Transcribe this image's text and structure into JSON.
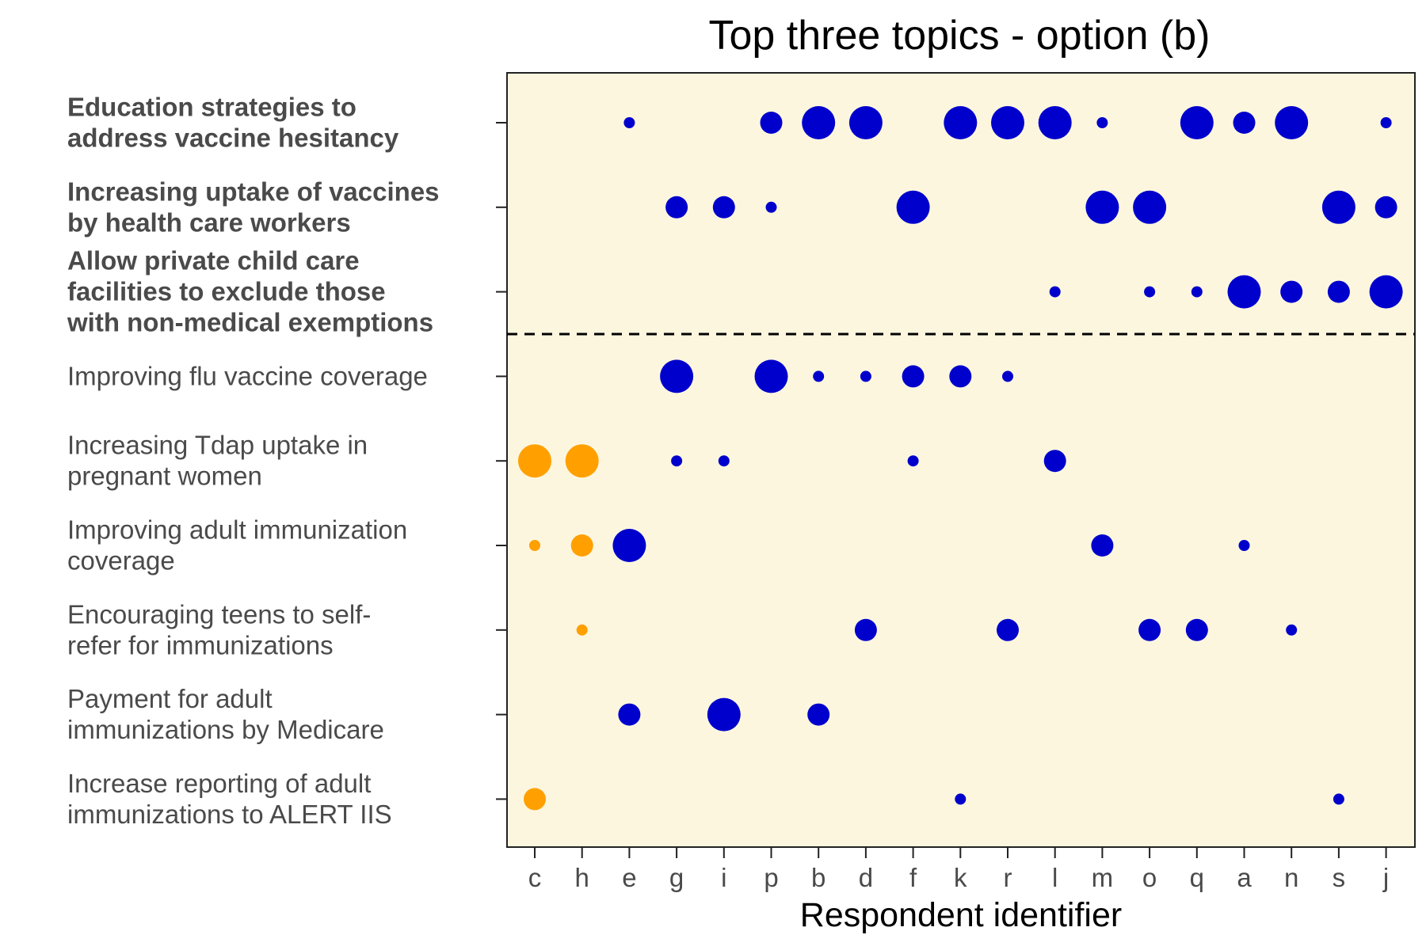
{
  "colors": {
    "panel": "#fdf6df",
    "primary": "#0000cc",
    "highlight": "#ffa000",
    "axis": "#222222"
  },
  "chart_data": {
    "type": "scatter",
    "title": "Top three topics - option (b)",
    "xlabel": "Respondent identifier",
    "ylabel": "",
    "categories": [
      "c",
      "h",
      "e",
      "g",
      "i",
      "p",
      "b",
      "d",
      "f",
      "k",
      "r",
      "l",
      "m",
      "o",
      "q",
      "a",
      "n",
      "s",
      "j"
    ],
    "topics": [
      {
        "label": [
          "Education strategies to",
          "address vaccine hesitancy"
        ],
        "bold": true
      },
      {
        "label": [
          "Increasing uptake of vaccines",
          "by health care workers"
        ],
        "bold": true
      },
      {
        "label": [
          "Allow private child care",
          "facilities to exclude those",
          "with non-medical exemptions"
        ],
        "bold": true
      },
      {
        "label": [
          "Improving flu vaccine coverage"
        ],
        "bold": false
      },
      {
        "label": [
          "Increasing Tdap uptake in",
          "pregnant women"
        ],
        "bold": false
      },
      {
        "label": [
          "Improving adult immunization",
          "coverage"
        ],
        "bold": false
      },
      {
        "label": [
          "Encouraging teens to self-",
          "refer for immunizations"
        ],
        "bold": false
      },
      {
        "label": [
          "Payment for adult",
          "immunizations by Medicare"
        ],
        "bold": false
      },
      {
        "label": [
          "Increase reporting of adult",
          "immunizations to ALERT IIS"
        ],
        "bold": false
      }
    ],
    "divider_after_topic": 2,
    "size_scale": [
      1,
      2,
      3
    ],
    "points": [
      {
        "topic": 0,
        "x": "e",
        "size": 1,
        "group": "primary"
      },
      {
        "topic": 0,
        "x": "p",
        "size": 2,
        "group": "primary"
      },
      {
        "topic": 0,
        "x": "b",
        "size": 3,
        "group": "primary"
      },
      {
        "topic": 0,
        "x": "d",
        "size": 3,
        "group": "primary"
      },
      {
        "topic": 0,
        "x": "k",
        "size": 3,
        "group": "primary"
      },
      {
        "topic": 0,
        "x": "r",
        "size": 3,
        "group": "primary"
      },
      {
        "topic": 0,
        "x": "l",
        "size": 3,
        "group": "primary"
      },
      {
        "topic": 0,
        "x": "m",
        "size": 1,
        "group": "primary"
      },
      {
        "topic": 0,
        "x": "q",
        "size": 3,
        "group": "primary"
      },
      {
        "topic": 0,
        "x": "a",
        "size": 2,
        "group": "primary"
      },
      {
        "topic": 0,
        "x": "n",
        "size": 3,
        "group": "primary"
      },
      {
        "topic": 0,
        "x": "j",
        "size": 1,
        "group": "primary"
      },
      {
        "topic": 1,
        "x": "g",
        "size": 2,
        "group": "primary"
      },
      {
        "topic": 1,
        "x": "i",
        "size": 2,
        "group": "primary"
      },
      {
        "topic": 1,
        "x": "p",
        "size": 1,
        "group": "primary"
      },
      {
        "topic": 1,
        "x": "f",
        "size": 3,
        "group": "primary"
      },
      {
        "topic": 1,
        "x": "m",
        "size": 3,
        "group": "primary"
      },
      {
        "topic": 1,
        "x": "o",
        "size": 3,
        "group": "primary"
      },
      {
        "topic": 1,
        "x": "s",
        "size": 3,
        "group": "primary"
      },
      {
        "topic": 1,
        "x": "j",
        "size": 2,
        "group": "primary"
      },
      {
        "topic": 2,
        "x": "l",
        "size": 1,
        "group": "primary"
      },
      {
        "topic": 2,
        "x": "o",
        "size": 1,
        "group": "primary"
      },
      {
        "topic": 2,
        "x": "q",
        "size": 1,
        "group": "primary"
      },
      {
        "topic": 2,
        "x": "a",
        "size": 3,
        "group": "primary"
      },
      {
        "topic": 2,
        "x": "n",
        "size": 2,
        "group": "primary"
      },
      {
        "topic": 2,
        "x": "s",
        "size": 2,
        "group": "primary"
      },
      {
        "topic": 2,
        "x": "j",
        "size": 3,
        "group": "primary"
      },
      {
        "topic": 3,
        "x": "g",
        "size": 3,
        "group": "primary"
      },
      {
        "topic": 3,
        "x": "p",
        "size": 3,
        "group": "primary"
      },
      {
        "topic": 3,
        "x": "b",
        "size": 1,
        "group": "primary"
      },
      {
        "topic": 3,
        "x": "d",
        "size": 1,
        "group": "primary"
      },
      {
        "topic": 3,
        "x": "f",
        "size": 2,
        "group": "primary"
      },
      {
        "topic": 3,
        "x": "k",
        "size": 2,
        "group": "primary"
      },
      {
        "topic": 3,
        "x": "r",
        "size": 1,
        "group": "primary"
      },
      {
        "topic": 4,
        "x": "c",
        "size": 3,
        "group": "highlight"
      },
      {
        "topic": 4,
        "x": "h",
        "size": 3,
        "group": "highlight"
      },
      {
        "topic": 4,
        "x": "g",
        "size": 1,
        "group": "primary"
      },
      {
        "topic": 4,
        "x": "i",
        "size": 1,
        "group": "primary"
      },
      {
        "topic": 4,
        "x": "f",
        "size": 1,
        "group": "primary"
      },
      {
        "topic": 4,
        "x": "l",
        "size": 2,
        "group": "primary"
      },
      {
        "topic": 5,
        "x": "c",
        "size": 1,
        "group": "highlight"
      },
      {
        "topic": 5,
        "x": "h",
        "size": 2,
        "group": "highlight"
      },
      {
        "topic": 5,
        "x": "e",
        "size": 3,
        "group": "primary"
      },
      {
        "topic": 5,
        "x": "m",
        "size": 2,
        "group": "primary"
      },
      {
        "topic": 5,
        "x": "a",
        "size": 1,
        "group": "primary"
      },
      {
        "topic": 6,
        "x": "h",
        "size": 1,
        "group": "highlight"
      },
      {
        "topic": 6,
        "x": "d",
        "size": 2,
        "group": "primary"
      },
      {
        "topic": 6,
        "x": "r",
        "size": 2,
        "group": "primary"
      },
      {
        "topic": 6,
        "x": "o",
        "size": 2,
        "group": "primary"
      },
      {
        "topic": 6,
        "x": "q",
        "size": 2,
        "group": "primary"
      },
      {
        "topic": 6,
        "x": "n",
        "size": 1,
        "group": "primary"
      },
      {
        "topic": 7,
        "x": "e",
        "size": 2,
        "group": "primary"
      },
      {
        "topic": 7,
        "x": "i",
        "size": 3,
        "group": "primary"
      },
      {
        "topic": 7,
        "x": "b",
        "size": 2,
        "group": "primary"
      },
      {
        "topic": 8,
        "x": "c",
        "size": 2,
        "group": "highlight"
      },
      {
        "topic": 8,
        "x": "k",
        "size": 1,
        "group": "primary"
      },
      {
        "topic": 8,
        "x": "s",
        "size": 1,
        "group": "primary"
      }
    ]
  }
}
